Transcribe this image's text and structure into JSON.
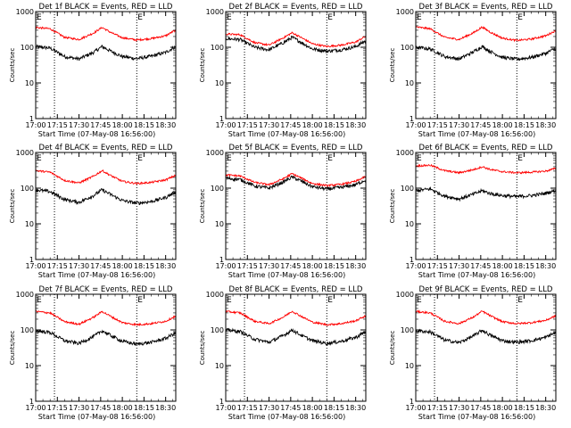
{
  "colors": {
    "events": "#000000",
    "lld": "#ff0000",
    "frame": "#000000",
    "background": "#ffffff"
  },
  "x_tick_labels": [
    "17:00",
    "17:15",
    "17:30",
    "17:45",
    "18:00",
    "18:15",
    "18:30"
  ],
  "y_tick_labels": [
    "1",
    "10",
    "100",
    "1000"
  ],
  "chart_data": [
    {
      "type": "line",
      "title": "Det 1f BLACK = Events, RED = LLD",
      "xlabel": "Start Time (07-May-08 16:56:00)",
      "ylabel": "Counts/sec",
      "x_ticks": [
        "17:00",
        "17:15",
        "17:30",
        "17:45",
        "18:00",
        "18:15",
        "18:30"
      ],
      "yscale": "log",
      "ylim": [
        1,
        1000
      ],
      "xlim": [
        "17:00",
        "18:37"
      ],
      "grid": false,
      "vlines": [
        "17:13",
        "18:10"
      ],
      "markers": [
        {
          "label": "E",
          "x": "17:00"
        },
        {
          "label": "E",
          "x": "18:10"
        }
      ],
      "series": [
        {
          "name": "Events",
          "color": "#000000",
          "x": [
            "17:00",
            "17:10",
            "17:20",
            "17:30",
            "17:40",
            "17:46",
            "17:52",
            "18:00",
            "18:10",
            "18:20",
            "18:30",
            "18:36"
          ],
          "values": [
            105,
            95,
            55,
            47,
            72,
            105,
            78,
            55,
            48,
            56,
            72,
            100
          ]
        },
        {
          "name": "LLD",
          "color": "#ff0000",
          "x": [
            "17:00",
            "17:10",
            "17:20",
            "17:30",
            "17:40",
            "17:46",
            "17:52",
            "18:00",
            "18:10",
            "18:20",
            "18:30",
            "18:36"
          ],
          "values": [
            360,
            330,
            190,
            165,
            250,
            360,
            260,
            185,
            160,
            175,
            210,
            290
          ]
        }
      ]
    },
    {
      "type": "line",
      "title": "Det 2f BLACK = Events, RED = LLD",
      "xlabel": "Start Time (07-May-08 16:56:00)",
      "ylabel": "Counts/sec",
      "x_ticks": [
        "17:00",
        "17:15",
        "17:30",
        "17:45",
        "18:00",
        "18:15",
        "18:30"
      ],
      "yscale": "log",
      "ylim": [
        1,
        1000
      ],
      "xlim": [
        "17:00",
        "18:37"
      ],
      "grid": false,
      "vlines": [
        "17:13",
        "18:10"
      ],
      "markers": [
        {
          "label": "E",
          "x": "17:00"
        },
        {
          "label": "E",
          "x": "18:10"
        }
      ],
      "series": [
        {
          "name": "Events",
          "color": "#000000",
          "x": [
            "17:00",
            "17:10",
            "17:20",
            "17:30",
            "17:40",
            "17:46",
            "17:52",
            "18:00",
            "18:10",
            "18:20",
            "18:30",
            "18:36"
          ],
          "values": [
            175,
            165,
            100,
            85,
            135,
            190,
            140,
            90,
            78,
            85,
            105,
            145
          ]
        },
        {
          "name": "LLD",
          "color": "#ff0000",
          "x": [
            "17:00",
            "17:10",
            "17:20",
            "17:30",
            "17:40",
            "17:46",
            "17:52",
            "18:00",
            "18:10",
            "18:20",
            "18:30",
            "18:36"
          ],
          "values": [
            235,
            225,
            135,
            115,
            185,
            255,
            190,
            125,
            105,
            115,
            140,
            195
          ]
        }
      ]
    },
    {
      "type": "line",
      "title": "Det 3f BLACK = Events, RED = LLD",
      "xlabel": "Start Time (07-May-08 16:56:00)",
      "ylabel": "Counts/sec",
      "x_ticks": [
        "17:00",
        "17:15",
        "17:30",
        "17:45",
        "18:00",
        "18:15",
        "18:30"
      ],
      "yscale": "log",
      "ylim": [
        1,
        1000
      ],
      "xlim": [
        "17:00",
        "18:37"
      ],
      "grid": false,
      "vlines": [
        "17:13",
        "18:10"
      ],
      "markers": [
        {
          "label": "E",
          "x": "17:00"
        },
        {
          "label": "E",
          "x": "18:10"
        }
      ],
      "series": [
        {
          "name": "Events",
          "color": "#000000",
          "x": [
            "17:00",
            "17:10",
            "17:20",
            "17:30",
            "17:40",
            "17:46",
            "17:52",
            "18:00",
            "18:10",
            "18:20",
            "18:30",
            "18:36"
          ],
          "values": [
            100,
            90,
            55,
            47,
            75,
            105,
            75,
            52,
            46,
            52,
            68,
            90
          ]
        },
        {
          "name": "LLD",
          "color": "#ff0000",
          "x": [
            "17:00",
            "17:10",
            "17:20",
            "17:30",
            "17:40",
            "17:46",
            "17:52",
            "18:00",
            "18:10",
            "18:20",
            "18:30",
            "18:36"
          ],
          "values": [
            370,
            330,
            190,
            165,
            255,
            370,
            260,
            180,
            155,
            170,
            210,
            280
          ]
        }
      ]
    },
    {
      "type": "line",
      "title": "Det 4f BLACK = Events, RED = LLD",
      "xlabel": "Start Time (07-May-08 16:56:00)",
      "ylabel": "Counts/sec",
      "x_ticks": [
        "17:00",
        "17:15",
        "17:30",
        "17:45",
        "18:00",
        "18:15",
        "18:30"
      ],
      "yscale": "log",
      "ylim": [
        1,
        1000
      ],
      "xlim": [
        "17:00",
        "18:37"
      ],
      "grid": false,
      "vlines": [
        "17:13",
        "18:10"
      ],
      "markers": [
        {
          "label": "E",
          "x": "17:00"
        },
        {
          "label": "E",
          "x": "18:10"
        }
      ],
      "series": [
        {
          "name": "Events",
          "color": "#000000",
          "x": [
            "17:00",
            "17:10",
            "17:20",
            "17:30",
            "17:40",
            "17:46",
            "17:52",
            "18:00",
            "18:10",
            "18:20",
            "18:30",
            "18:36"
          ],
          "values": [
            90,
            80,
            48,
            40,
            62,
            90,
            66,
            45,
            38,
            42,
            55,
            75
          ]
        },
        {
          "name": "LLD",
          "color": "#ff0000",
          "x": [
            "17:00",
            "17:10",
            "17:20",
            "17:30",
            "17:40",
            "17:46",
            "17:52",
            "18:00",
            "18:10",
            "18:20",
            "18:30",
            "18:36"
          ],
          "values": [
            310,
            280,
            165,
            140,
            215,
            310,
            225,
            155,
            135,
            145,
            170,
            220
          ]
        }
      ]
    },
    {
      "type": "line",
      "title": "Det 5f BLACK = Events, RED = LLD",
      "xlabel": "Start Time (07-May-08 16:56:00)",
      "ylabel": "Counts/sec",
      "x_ticks": [
        "17:00",
        "17:15",
        "17:30",
        "17:45",
        "18:00",
        "18:15",
        "18:30"
      ],
      "yscale": "log",
      "ylim": [
        1,
        1000
      ],
      "xlim": [
        "17:00",
        "18:37"
      ],
      "grid": false,
      "vlines": [
        "17:13",
        "18:10"
      ],
      "markers": [
        {
          "label": "E",
          "x": "17:00"
        },
        {
          "label": "E",
          "x": "18:10"
        }
      ],
      "series": [
        {
          "name": "Events",
          "color": "#000000",
          "x": [
            "17:00",
            "17:10",
            "17:20",
            "17:30",
            "17:40",
            "17:46",
            "17:52",
            "18:00",
            "18:10",
            "18:20",
            "18:30",
            "18:36"
          ],
          "values": [
            190,
            175,
            115,
            100,
            150,
            205,
            160,
            110,
            95,
            105,
            125,
            165
          ]
        },
        {
          "name": "LLD",
          "color": "#ff0000",
          "x": [
            "17:00",
            "17:10",
            "17:20",
            "17:30",
            "17:40",
            "17:46",
            "17:52",
            "18:00",
            "18:10",
            "18:20",
            "18:30",
            "18:36"
          ],
          "values": [
            235,
            220,
            145,
            125,
            185,
            255,
            195,
            135,
            118,
            128,
            155,
            205
          ]
        }
      ]
    },
    {
      "type": "line",
      "title": "Det 6f BLACK = Events, RED = LLD",
      "xlabel": "Start Time (07-May-08 16:56:00)",
      "ylabel": "Counts/sec",
      "x_ticks": [
        "17:00",
        "17:15",
        "17:30",
        "17:45",
        "18:00",
        "18:15",
        "18:30"
      ],
      "yscale": "log",
      "ylim": [
        1,
        1000
      ],
      "xlim": [
        "17:00",
        "18:37"
      ],
      "grid": false,
      "vlines": [
        "17:13",
        "18:10"
      ],
      "markers": [
        {
          "label": "E",
          "x": "17:00"
        },
        {
          "label": "E",
          "x": "18:10"
        }
      ],
      "series": [
        {
          "name": "Events",
          "color": "#000000",
          "x": [
            "17:00",
            "17:10",
            "17:20",
            "17:30",
            "17:40",
            "17:46",
            "17:52",
            "18:00",
            "18:10",
            "18:20",
            "18:30",
            "18:36"
          ],
          "values": [
            85,
            95,
            60,
            50,
            68,
            85,
            70,
            62,
            58,
            62,
            72,
            85
          ]
        },
        {
          "name": "LLD",
          "color": "#ff0000",
          "x": [
            "17:00",
            "17:10",
            "17:20",
            "17:30",
            "17:40",
            "17:46",
            "17:52",
            "18:00",
            "18:10",
            "18:20",
            "18:30",
            "18:36"
          ],
          "values": [
            420,
            440,
            310,
            270,
            330,
            400,
            330,
            290,
            270,
            280,
            300,
            350
          ]
        }
      ]
    },
    {
      "type": "line",
      "title": "Det 7f BLACK = Events, RED = LLD",
      "xlabel": "Start Time (07-May-08 16:56:00)",
      "ylabel": "Counts/sec",
      "x_ticks": [
        "17:00",
        "17:15",
        "17:30",
        "17:45",
        "18:00",
        "18:15",
        "18:30"
      ],
      "yscale": "log",
      "ylim": [
        1,
        1000
      ],
      "xlim": [
        "17:00",
        "18:37"
      ],
      "grid": false,
      "vlines": [
        "17:13",
        "18:10"
      ],
      "markers": [
        {
          "label": "E",
          "x": "17:00"
        },
        {
          "label": "E",
          "x": "18:10"
        }
      ],
      "series": [
        {
          "name": "Events",
          "color": "#000000",
          "x": [
            "17:00",
            "17:10",
            "17:20",
            "17:30",
            "17:40",
            "17:46",
            "17:52",
            "18:00",
            "18:10",
            "18:20",
            "18:30",
            "18:36"
          ],
          "values": [
            95,
            85,
            50,
            42,
            65,
            95,
            70,
            48,
            40,
            45,
            58,
            80
          ]
        },
        {
          "name": "LLD",
          "color": "#ff0000",
          "x": [
            "17:00",
            "17:10",
            "17:20",
            "17:30",
            "17:40",
            "17:46",
            "17:52",
            "18:00",
            "18:10",
            "18:20",
            "18:30",
            "18:36"
          ],
          "values": [
            330,
            300,
            170,
            145,
            225,
            330,
            240,
            160,
            140,
            150,
            175,
            235
          ]
        }
      ]
    },
    {
      "type": "line",
      "title": "Det 8f BLACK = Events, RED = LLD",
      "xlabel": "Start Time (07-May-08 16:56:00)",
      "ylabel": "Counts/sec",
      "x_ticks": [
        "17:00",
        "17:15",
        "17:30",
        "17:45",
        "18:00",
        "18:15",
        "18:30"
      ],
      "yscale": "log",
      "ylim": [
        1,
        1000
      ],
      "xlim": [
        "17:00",
        "18:37"
      ],
      "grid": false,
      "vlines": [
        "17:13",
        "18:10"
      ],
      "markers": [
        {
          "label": "E",
          "x": "17:00"
        },
        {
          "label": "E",
          "x": "18:10"
        }
      ],
      "series": [
        {
          "name": "Events",
          "color": "#000000",
          "x": [
            "17:00",
            "17:10",
            "17:20",
            "17:30",
            "17:40",
            "17:46",
            "17:52",
            "18:00",
            "18:10",
            "18:20",
            "18:30",
            "18:36"
          ],
          "values": [
            100,
            90,
            55,
            45,
            70,
            100,
            72,
            50,
            42,
            48,
            62,
            85
          ]
        },
        {
          "name": "LLD",
          "color": "#ff0000",
          "x": [
            "17:00",
            "17:10",
            "17:20",
            "17:30",
            "17:40",
            "17:46",
            "17:52",
            "18:00",
            "18:10",
            "18:20",
            "18:30",
            "18:36"
          ],
          "values": [
            330,
            300,
            175,
            150,
            230,
            335,
            245,
            165,
            140,
            150,
            180,
            240
          ]
        }
      ]
    },
    {
      "type": "line",
      "title": "Det 9f BLACK = Events, RED = LLD",
      "xlabel": "Start Time (07-May-08 16:56:00)",
      "ylabel": "Counts/sec",
      "x_ticks": [
        "17:00",
        "17:15",
        "17:30",
        "17:45",
        "18:00",
        "18:15",
        "18:30"
      ],
      "yscale": "log",
      "ylim": [
        1,
        1000
      ],
      "xlim": [
        "17:00",
        "18:37"
      ],
      "grid": false,
      "vlines": [
        "17:13",
        "18:10"
      ],
      "markers": [
        {
          "label": "E",
          "x": "17:00"
        },
        {
          "label": "E",
          "x": "18:10"
        }
      ],
      "series": [
        {
          "name": "Events",
          "color": "#000000",
          "x": [
            "17:00",
            "17:10",
            "17:20",
            "17:30",
            "17:40",
            "17:46",
            "17:52",
            "18:00",
            "18:10",
            "18:20",
            "18:30",
            "18:36"
          ],
          "values": [
            95,
            88,
            52,
            44,
            68,
            98,
            70,
            50,
            45,
            50,
            62,
            82
          ]
        },
        {
          "name": "LLD",
          "color": "#ff0000",
          "x": [
            "17:00",
            "17:10",
            "17:20",
            "17:30",
            "17:40",
            "17:46",
            "17:52",
            "18:00",
            "18:10",
            "18:20",
            "18:30",
            "18:36"
          ],
          "values": [
            330,
            300,
            175,
            150,
            230,
            335,
            245,
            170,
            150,
            160,
            185,
            240
          ]
        }
      ]
    }
  ]
}
